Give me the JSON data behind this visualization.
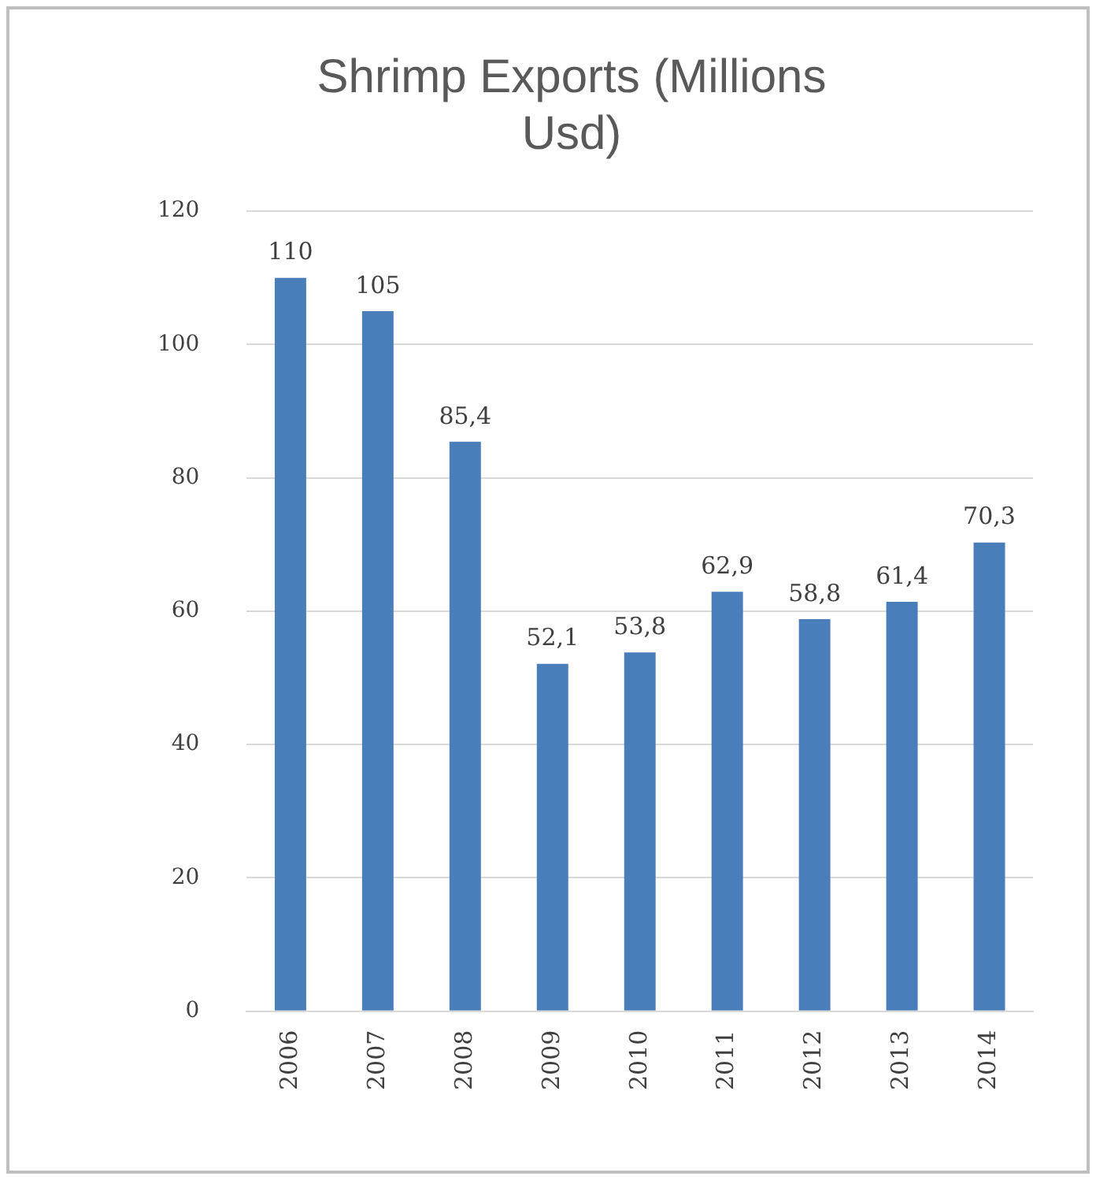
{
  "chart_data": {
    "type": "bar",
    "title": "Shrimp Exports (Millions Usd)",
    "categories": [
      "2006",
      "2007",
      "2008",
      "2009",
      "2010",
      "2011",
      "2012",
      "2013",
      "2014"
    ],
    "values": [
      110,
      105,
      85.4,
      52.1,
      53.8,
      62.9,
      58.8,
      61.4,
      70.3
    ],
    "value_labels": [
      "110",
      "105",
      "85,4",
      "52,1",
      "53,8",
      "62,9",
      "58,8",
      "61,4",
      "70,3"
    ],
    "color": "#4a7ebb",
    "ylim": [
      0,
      120
    ],
    "yticks": [
      0,
      20,
      40,
      60,
      80,
      100,
      120
    ],
    "grid": "y",
    "legend": false
  }
}
